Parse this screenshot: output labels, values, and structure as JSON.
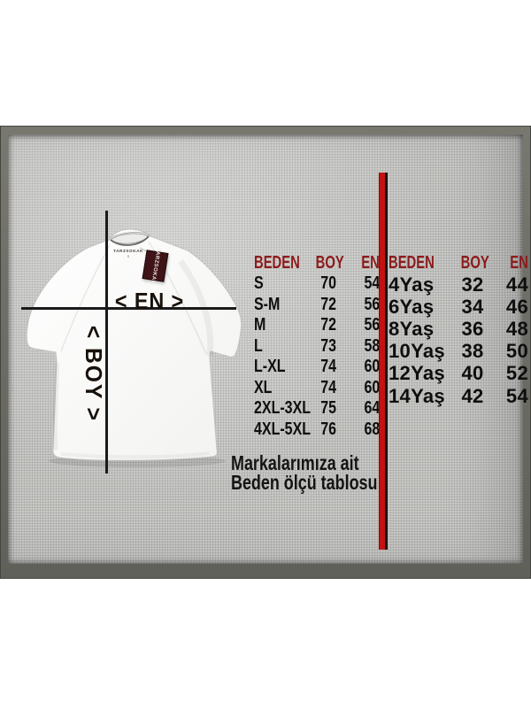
{
  "diagram": {
    "width_label": "< EN >",
    "length_label": "< BOY >",
    "neck_brand": "TARZSOKAK",
    "neck_size": "S",
    "tag_text": "TARZSOKAK"
  },
  "tables": {
    "adult": {
      "headers": [
        "BEDEN",
        "BOY",
        "EN"
      ],
      "rows": [
        [
          "S",
          "70",
          "54"
        ],
        [
          "S-M",
          "72",
          "56"
        ],
        [
          "M",
          "72",
          "56"
        ],
        [
          "L",
          "73",
          "58"
        ],
        [
          "L-XL",
          "74",
          "60"
        ],
        [
          "XL",
          "74",
          "60"
        ],
        [
          "2XL-3XL",
          "75",
          "64"
        ],
        [
          "4XL-5XL",
          "76",
          "68"
        ]
      ]
    },
    "kids": {
      "headers": [
        "BEDEN",
        "BOY",
        "EN"
      ],
      "rows": [
        [
          "4Yaş",
          "32",
          "44"
        ],
        [
          "6Yaş",
          "34",
          "46"
        ],
        [
          "8Yaş",
          "36",
          "48"
        ],
        [
          "10Yaş",
          "38",
          "50"
        ],
        [
          "12Yaş",
          "40",
          "52"
        ],
        [
          "14Yaş",
          "42",
          "54"
        ]
      ]
    }
  },
  "caption": {
    "line1": "Markalarımıza ait",
    "line2": "Beden ölçü tablosu"
  },
  "colors": {
    "header_red": "#8c1b1b",
    "divider_red": "#c41111",
    "tag_maroon": "#3f1418",
    "panel_gray": "#c8c8c6",
    "frame_gray": "#6e6e66",
    "line_black": "#1a1a1a"
  }
}
